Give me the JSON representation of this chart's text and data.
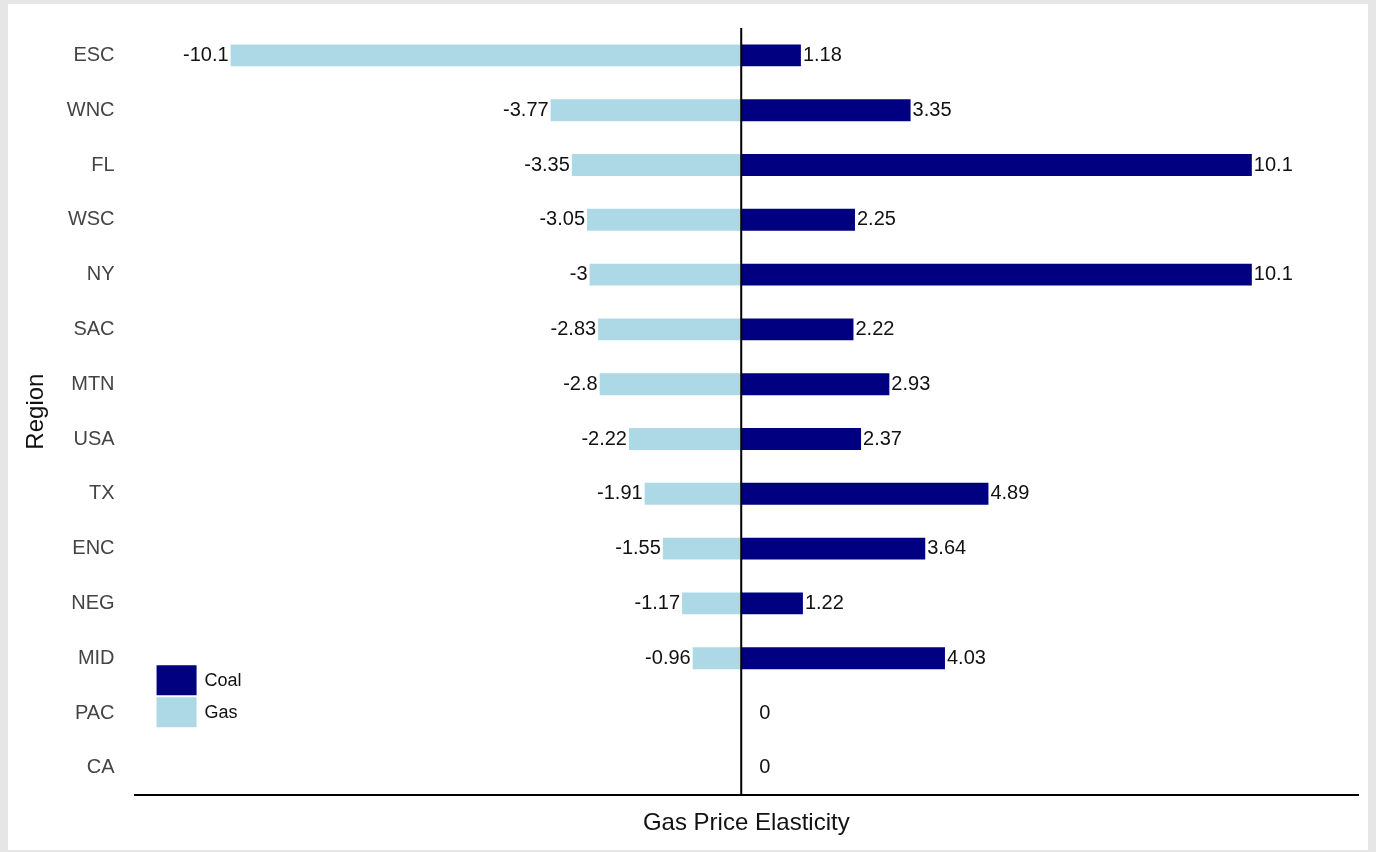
{
  "chart_data": {
    "type": "bar",
    "orientation": "horizontal",
    "stacked": true,
    "xlabel": "Gas Price Elasticity",
    "ylabel": "Region",
    "categories": [
      "ESC",
      "WNC",
      "FL",
      "WSC",
      "NY",
      "SAC",
      "MTN",
      "USA",
      "TX",
      "ENC",
      "NEG",
      "MID",
      "PAC",
      "CA"
    ],
    "series": [
      {
        "name": "Coal",
        "color": "#000080",
        "values": [
          1.18,
          3.35,
          10.1,
          2.25,
          10.1,
          2.22,
          2.93,
          2.37,
          4.89,
          3.64,
          1.22,
          4.03,
          0,
          0
        ]
      },
      {
        "name": "Gas",
        "color": "#add8e6",
        "values": [
          -10.1,
          -3.77,
          -3.35,
          -3.05,
          -3,
          -2.83,
          -2.8,
          -2.22,
          -1.91,
          -1.55,
          -1.17,
          -0.96,
          null,
          null
        ]
      }
    ],
    "xlim": [
      -12,
      12.2
    ],
    "tick_labels": "y",
    "data_labels": true,
    "legend": "bottom left",
    "ref_lines": [
      {
        "axis": "x",
        "value": 0,
        "color": "#000000"
      }
    ]
  }
}
